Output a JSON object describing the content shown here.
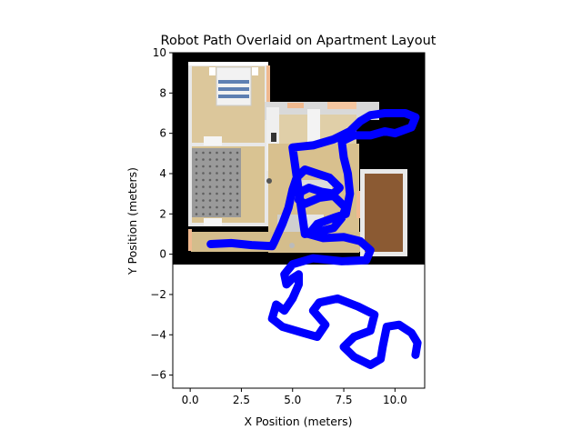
{
  "chart_data": {
    "type": "line",
    "title": "Robot Path Overlaid on Apartment Layout",
    "xlabel": "X Position (meters)",
    "ylabel": "Y Position (meters)",
    "xlim": [
      -0.85,
      11.45
    ],
    "ylim": [
      -6.65,
      10.0
    ],
    "xticks": [
      0.0,
      2.5,
      5.0,
      7.5,
      10.0
    ],
    "xtick_labels": [
      "0.0",
      "2.5",
      "5.0",
      "7.5",
      "10.0"
    ],
    "yticks": [
      -6,
      -4,
      -2,
      0,
      2,
      4,
      6,
      8,
      10
    ],
    "ytick_labels": [
      "−6",
      "−4",
      "−2",
      "0",
      "2",
      "4",
      "6",
      "8",
      "10"
    ],
    "grid": false,
    "background_image": {
      "description": "apartment floor plan",
      "extent": [
        -0.85,
        11.45,
        -0.45,
        10.0
      ]
    },
    "series": [
      {
        "color": "#0000ff",
        "x": [
          1.0,
          2.0,
          3.0,
          4.0,
          4.1,
          4.5,
          4.8,
          5.0,
          5.2,
          5.6,
          6.2,
          6.8,
          7.3,
          7.0,
          6.4,
          5.8,
          5.4,
          5.3,
          5.6,
          6.3,
          7.0,
          7.6,
          7.4,
          7.0,
          6.2,
          5.6,
          5.0,
          6.0,
          7.0,
          7.8,
          8.3,
          8.8,
          9.5,
          10.5,
          11.0,
          10.8,
          10.0,
          9.5,
          8.8,
          8.0,
          7.4,
          7.5,
          7.7,
          7.8,
          7.6,
          7.0,
          6.2,
          5.8,
          6.5,
          7.5,
          8.3,
          8.8,
          8.6,
          7.4,
          6.0,
          5.0,
          4.6,
          4.7,
          5.0,
          5.3,
          5.3,
          5.0,
          4.6,
          4.2,
          4.0,
          4.5,
          5.5,
          6.2,
          6.6,
          6.0,
          6.3,
          7.2,
          8.2,
          9.0,
          8.8,
          8.0,
          7.5,
          8.0,
          8.8,
          9.3,
          9.4,
          9.6,
          10.2,
          10.8,
          11.1,
          11.0
        ],
        "y": [
          0.5,
          0.55,
          0.45,
          0.4,
          0.6,
          1.5,
          2.3,
          3.2,
          3.8,
          4.2,
          4.0,
          3.8,
          3.3,
          3.0,
          3.1,
          3.3,
          3.1,
          2.7,
          2.5,
          2.8,
          2.9,
          2.3,
          1.8,
          1.3,
          1.1,
          1.0,
          5.3,
          5.4,
          5.7,
          6.1,
          6.6,
          6.9,
          7.0,
          7.0,
          6.8,
          6.3,
          6.0,
          6.1,
          5.9,
          5.9,
          5.6,
          4.8,
          4.0,
          3.0,
          2.0,
          1.8,
          1.5,
          1.0,
          0.8,
          0.85,
          0.65,
          0.2,
          -0.3,
          -0.35,
          -0.2,
          -0.5,
          -1.0,
          -1.5,
          -1.2,
          -1.0,
          -1.5,
          -2.2,
          -2.8,
          -2.5,
          -3.2,
          -3.6,
          -3.9,
          -4.1,
          -3.5,
          -2.8,
          -2.4,
          -2.2,
          -2.6,
          -3.0,
          -3.8,
          -4.1,
          -4.6,
          -5.1,
          -5.5,
          -5.2,
          -4.6,
          -3.6,
          -3.5,
          -3.9,
          -4.4,
          -5.0
        ]
      }
    ]
  }
}
